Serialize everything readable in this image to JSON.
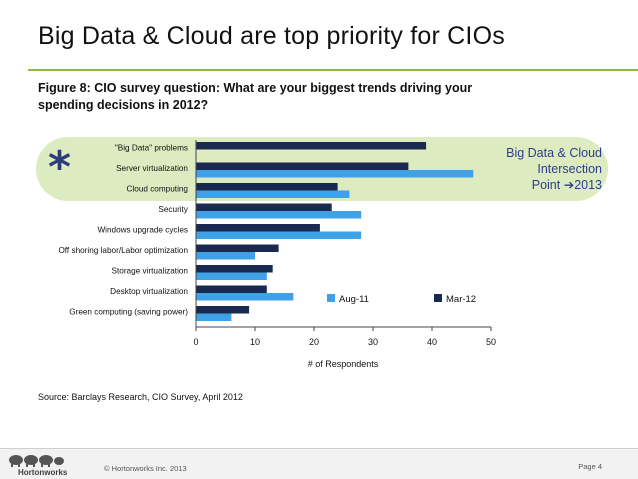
{
  "slide": {
    "title": "Big Data & Cloud are top priority for CIOs",
    "caption": "Figure 8: CIO survey question: What are your biggest trends driving your spending decisions in 2012?",
    "asterisk": "*",
    "note_line1": "Big Data & Cloud",
    "note_line2": "Intersection",
    "note_line3_prefix": "Point ",
    "note_arrow": "➔",
    "note_line3_suffix": "2013",
    "source": "Source: Barclays Research, CIO Survey, April 2012",
    "logo_text": "Hortonworks",
    "copyright": "© Hortonworks Inc. 2013",
    "page": "Page 4"
  },
  "colors": {
    "accent_green": "#8dbb3e",
    "highlight_fill": "#dcecc0",
    "mar12": "#1a2950",
    "aug11": "#3fa2e6",
    "note_text": "#2d3d8c"
  },
  "chart_data": {
    "type": "bar",
    "orientation": "horizontal",
    "categories": [
      "\"Big Data\" problems",
      "Server virtualization",
      "Cloud computing",
      "Security",
      "Windows upgrade cycles",
      "Off shoring labor/Labor optimization",
      "Storage virtualization",
      "Desktop virtualization",
      "Green computing (saving power)"
    ],
    "series": [
      {
        "name": "Mar-12",
        "color": "#1a2950",
        "values": [
          39,
          36,
          24,
          23,
          21,
          14,
          13,
          12,
          9
        ]
      },
      {
        "name": "Aug-11",
        "color": "#3fa2e6",
        "values": [
          null,
          47,
          26,
          28,
          28,
          10,
          12,
          16.5,
          6
        ]
      }
    ],
    "xlabel": "# of Respondents",
    "xlim": [
      0,
      50
    ],
    "xticks": [
      0,
      10,
      20,
      30,
      40,
      50
    ],
    "legend": [
      "Aug-11",
      "Mar-12"
    ],
    "legend_position": "bottom-right",
    "grid": false
  }
}
